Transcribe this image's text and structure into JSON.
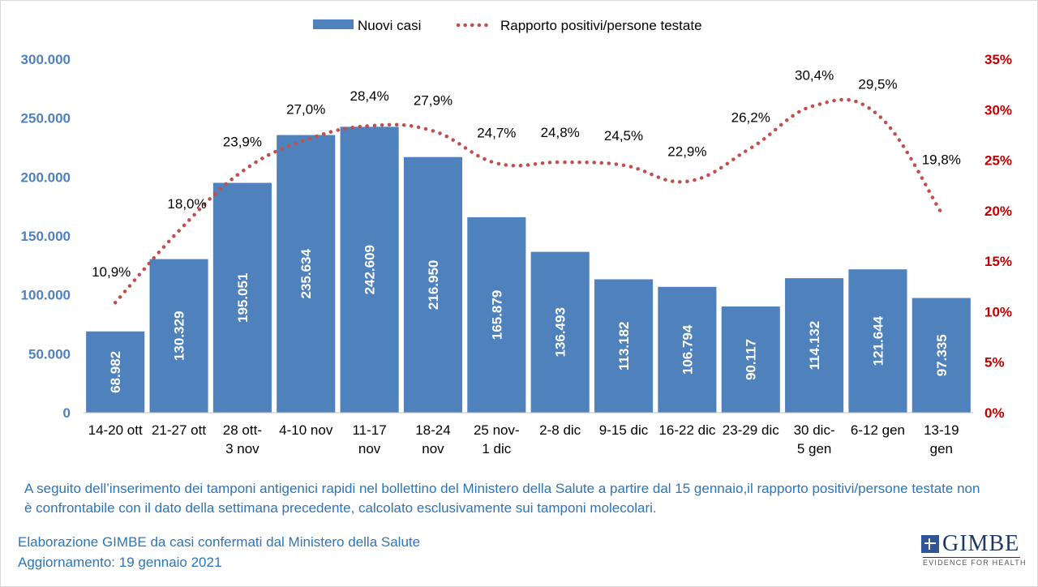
{
  "chart_data": {
    "type": "bar+line",
    "categories": [
      [
        "14-20 ott"
      ],
      [
        "21-27 ott"
      ],
      [
        "28 ott-",
        "3 nov"
      ],
      [
        "4-10 nov"
      ],
      [
        "11-17",
        "nov"
      ],
      [
        "18-24",
        "nov"
      ],
      [
        "25 nov-",
        "1 dic"
      ],
      [
        "2-8 dic"
      ],
      [
        "9-15 dic"
      ],
      [
        "16-22 dic"
      ],
      [
        "23-29 dic"
      ],
      [
        "30 dic-",
        "5 gen"
      ],
      [
        "6-12 gen"
      ],
      [
        "13-19",
        "gen"
      ]
    ],
    "series": [
      {
        "name": "Nuovi casi",
        "kind": "bar",
        "axis": "left",
        "color": "#4f81bd",
        "values": [
          68982,
          130329,
          195051,
          235634,
          242609,
          216950,
          165879,
          136493,
          113182,
          106794,
          90117,
          114132,
          121644,
          97335
        ],
        "labels": [
          "68.982",
          "130.329",
          "195.051",
          "235.634",
          "242.609",
          "216.950",
          "165.879",
          "136.493",
          "113.182",
          "106.794",
          "90.117",
          "114.132",
          "121.644",
          "97.335"
        ]
      },
      {
        "name": "Rapporto positivi/persone testate",
        "kind": "line-dotted",
        "axis": "right",
        "color": "#c0504d",
        "values": [
          10.9,
          18.0,
          23.9,
          27.0,
          28.4,
          27.9,
          24.7,
          24.8,
          24.5,
          22.9,
          26.2,
          30.4,
          29.5,
          19.8
        ],
        "labels": [
          "10,9%",
          "18,0%",
          "23,9%",
          "27,0%",
          "28,4%",
          "27,9%",
          "24,7%",
          "24,8%",
          "24,5%",
          "22,9%",
          "26,2%",
          "30,4%",
          "29,5%",
          "19,8%"
        ]
      }
    ],
    "y_left": {
      "range": [
        0,
        300000
      ],
      "ticks": [
        0,
        50000,
        100000,
        150000,
        200000,
        250000,
        300000
      ],
      "tick_labels": [
        "0",
        "50.000",
        "100.000",
        "150.000",
        "200.000",
        "250.000",
        "300.000"
      ],
      "color": "#4f81bd"
    },
    "y_right": {
      "range": [
        0,
        35
      ],
      "ticks": [
        0,
        5,
        10,
        15,
        20,
        25,
        30,
        35
      ],
      "tick_labels": [
        "0%",
        "5%",
        "10%",
        "15%",
        "20%",
        "25%",
        "30%",
        "35%"
      ],
      "color": "#c00000"
    },
    "legend": {
      "position": "top",
      "entries": [
        "Nuovi casi",
        "Rapporto positivi/persone testate"
      ]
    },
    "grid": false
  },
  "note": "A seguito dell’inserimento dei tamponi antigenici rapidi nel bollettino del Ministero della Salute a partire dal 15 gennaio,il rapporto positivi/persone testate non è confrontabile con il dato della settimana precedente, calcolato esclusivamente sui tamponi molecolari.",
  "footer": {
    "line1": "Elaborazione GIMBE da casi confermati dal Ministero della Salute",
    "line2": "Aggiornamento: 19 gennaio 2021"
  },
  "logo": {
    "word": "GIMBE",
    "tagline": "EVIDENCE FOR HEALTH"
  }
}
